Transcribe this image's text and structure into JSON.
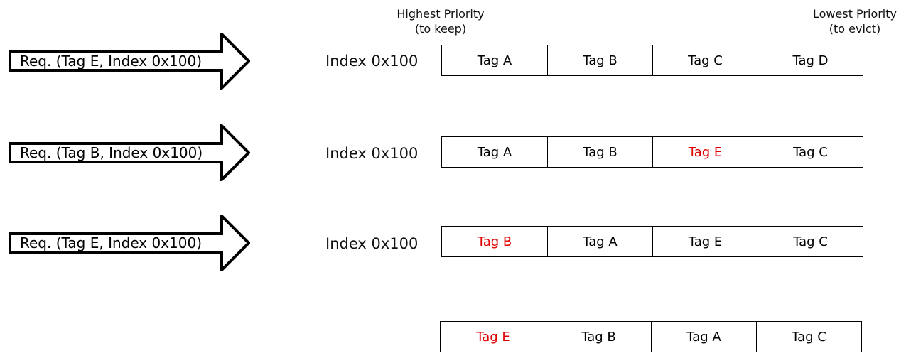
{
  "header": {
    "highest_line1": "Highest Priority",
    "highest_line2": "(to keep)",
    "lowest_line1": "Lowest Priority",
    "lowest_line2": "(to evict)"
  },
  "requests": [
    "Req. (Tag E, Index 0x100)",
    "Req. (Tag B, Index 0x100)",
    "Req. (Tag E, Index 0x100)"
  ],
  "index_labels": [
    "Index 0x100",
    "Index 0x100",
    "Index 0x100"
  ],
  "highlight_color": "#e00000",
  "states": [
    {
      "cells": [
        {
          "tag": "Tag A",
          "highlight": false
        },
        {
          "tag": "Tag B",
          "highlight": false
        },
        {
          "tag": "Tag C",
          "highlight": false
        },
        {
          "tag": "Tag D",
          "highlight": false
        }
      ]
    },
    {
      "cells": [
        {
          "tag": "Tag A",
          "highlight": false
        },
        {
          "tag": "Tag B",
          "highlight": false
        },
        {
          "tag": "Tag E",
          "highlight": true
        },
        {
          "tag": "Tag C",
          "highlight": false
        }
      ]
    },
    {
      "cells": [
        {
          "tag": "Tag B",
          "highlight": true
        },
        {
          "tag": "Tag A",
          "highlight": false
        },
        {
          "tag": "Tag E",
          "highlight": false
        },
        {
          "tag": "Tag C",
          "highlight": false
        }
      ]
    },
    {
      "cells": [
        {
          "tag": "Tag E",
          "highlight": true
        },
        {
          "tag": "Tag B",
          "highlight": false
        },
        {
          "tag": "Tag A",
          "highlight": false
        },
        {
          "tag": "Tag C",
          "highlight": false
        }
      ]
    }
  ]
}
